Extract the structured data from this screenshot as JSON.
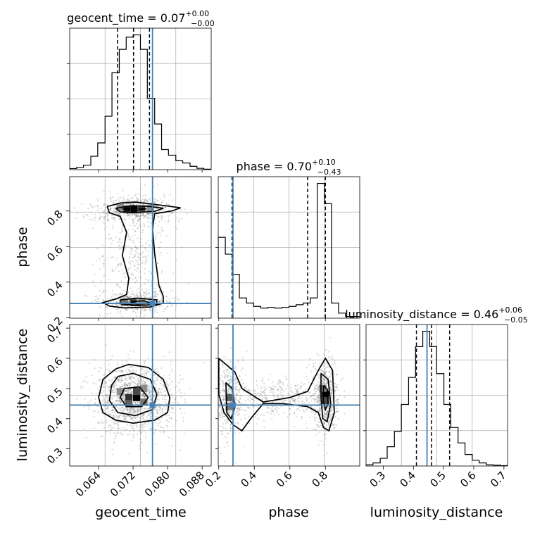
{
  "chart_data": {
    "type": "corner",
    "parameters": [
      "geocent_time",
      "phase",
      "luminosity_distance"
    ],
    "axis_labels": {
      "geocent_time": "geocent_time",
      "phase": "phase",
      "luminosity_distance": "luminosity_distance"
    },
    "ranges": {
      "geocent_time": [
        0.0573,
        0.0901
      ],
      "phase": [
        0.197,
        0.993
      ],
      "luminosity_distance": [
        0.243,
        0.712
      ]
    },
    "ticks": {
      "geocent_time": [
        "0.064",
        "0.072",
        "0.080",
        "0.088"
      ],
      "phase": [
        "0.2",
        "0.4",
        "0.6",
        "0.8"
      ],
      "luminosity_distance": [
        "0.3",
        "0.4",
        "0.5",
        "0.6",
        "0.7"
      ]
    },
    "phase_row_ticks": [
      "0.2",
      "0.4",
      "0.6",
      "0.8"
    ],
    "ld_row_ticks": [
      "0.3",
      "0.4",
      "0.5",
      "0.6",
      "0.7"
    ],
    "injection_values": {
      "geocent_time": 0.0765,
      "phase": 0.28,
      "luminosity_distance": 0.445
    },
    "summaries": [
      {
        "name": "geocent_time",
        "median": "0.07",
        "plus": "+0.00",
        "minus": "−0.00",
        "quantiles": [
          0.0684,
          0.0721,
          0.0758
        ]
      },
      {
        "name": "phase",
        "median": "0.70",
        "plus": "+0.10",
        "minus": "−0.43",
        "quantiles": [
          0.275,
          0.7,
          0.8
        ]
      },
      {
        "name": "luminosity_distance",
        "median": "0.46",
        "plus": "+0.06",
        "minus": "−0.05",
        "quantiles": [
          0.41,
          0.46,
          0.52
        ]
      }
    ],
    "histograms": {
      "geocent_time": {
        "bins": [
          0.0573,
          0.0589,
          0.0605,
          0.0622,
          0.0638,
          0.0655,
          0.0671,
          0.0688,
          0.0704,
          0.072,
          0.0737,
          0.0753,
          0.077,
          0.0786,
          0.0802,
          0.0819,
          0.0835,
          0.0852,
          0.0868,
          0.0884,
          0.0901
        ],
        "counts": [
          0.5,
          1.0,
          2.0,
          6.0,
          12.0,
          24.0,
          43.5,
          54.0,
          59.5,
          60.5,
          54.0,
          32.0,
          20.5,
          9.0,
          6.5,
          4.0,
          3.0,
          1.5,
          0.6,
          0.2
        ]
      },
      "phase": {
        "bins": [
          0.197,
          0.237,
          0.277,
          0.316,
          0.356,
          0.396,
          0.436,
          0.476,
          0.515,
          0.555,
          0.595,
          0.635,
          0.675,
          0.715,
          0.754,
          0.794,
          0.834,
          0.874,
          0.913,
          0.953,
          0.993
        ],
        "counts": [
          24,
          19,
          13,
          6,
          4.5,
          3.5,
          3.0,
          3.2,
          3.0,
          3.2,
          3.5,
          4.0,
          4.5,
          6.0,
          40,
          34,
          4.5,
          1.5,
          0.5,
          0.5
        ]
      },
      "luminosity_distance": {
        "bins": [
          0.243,
          0.266,
          0.29,
          0.313,
          0.337,
          0.36,
          0.384,
          0.407,
          0.431,
          0.454,
          0.477,
          0.501,
          0.524,
          0.548,
          0.571,
          0.595,
          0.618,
          0.642,
          0.665,
          0.689,
          0.712
        ],
        "counts": [
          0.3,
          0.8,
          2.0,
          5.0,
          9.0,
          16.0,
          23.0,
          31.0,
          35.0,
          31.0,
          24.0,
          16.0,
          10.0,
          6.0,
          3.0,
          1.5,
          0.8,
          0.3,
          0.2,
          0.1
        ]
      }
    },
    "contours": {
      "geocent_time_vs_phase": [
        [
          [
            0.066,
            0.825
          ],
          [
            0.069,
            0.845
          ],
          [
            0.0725,
            0.85
          ],
          [
            0.076,
            0.84
          ],
          [
            0.08,
            0.828
          ],
          [
            0.083,
            0.818
          ],
          [
            0.081,
            0.8
          ],
          [
            0.077,
            0.785
          ],
          [
            0.0765,
            0.7
          ],
          [
            0.077,
            0.56
          ],
          [
            0.078,
            0.38
          ],
          [
            0.079,
            0.32
          ],
          [
            0.079,
            0.282
          ],
          [
            0.076,
            0.26
          ],
          [
            0.07,
            0.255
          ],
          [
            0.0665,
            0.265
          ],
          [
            0.065,
            0.285
          ],
          [
            0.068,
            0.305
          ],
          [
            0.0705,
            0.33
          ],
          [
            0.071,
            0.42
          ],
          [
            0.0695,
            0.55
          ],
          [
            0.0705,
            0.68
          ],
          [
            0.069,
            0.77
          ],
          [
            0.0665,
            0.79
          ],
          [
            0.066,
            0.825
          ]
        ],
        [
          [
            0.068,
            0.815
          ],
          [
            0.0715,
            0.83
          ],
          [
            0.076,
            0.825
          ],
          [
            0.079,
            0.815
          ],
          [
            0.077,
            0.798
          ],
          [
            0.072,
            0.79
          ],
          [
            0.069,
            0.795
          ],
          [
            0.068,
            0.815
          ]
        ],
        [
          [
            0.0695,
            0.812
          ],
          [
            0.0725,
            0.818
          ],
          [
            0.075,
            0.812
          ],
          [
            0.0725,
            0.802
          ],
          [
            0.0695,
            0.812
          ]
        ],
        [
          [
            0.069,
            0.3
          ],
          [
            0.073,
            0.31
          ],
          [
            0.0775,
            0.3
          ],
          [
            0.0775,
            0.275
          ],
          [
            0.073,
            0.268
          ],
          [
            0.069,
            0.278
          ],
          [
            0.069,
            0.3
          ]
        ],
        [
          [
            0.0715,
            0.29
          ],
          [
            0.0745,
            0.295
          ],
          [
            0.076,
            0.282
          ],
          [
            0.073,
            0.276
          ],
          [
            0.0715,
            0.29
          ]
        ]
      ],
      "geocent_time_vs_luminosity_distance": [
        [
          [
            0.068,
            0.565
          ],
          [
            0.071,
            0.58
          ],
          [
            0.0755,
            0.57
          ],
          [
            0.079,
            0.53
          ],
          [
            0.0805,
            0.47
          ],
          [
            0.08,
            0.42
          ],
          [
            0.077,
            0.395
          ],
          [
            0.072,
            0.385
          ],
          [
            0.068,
            0.395
          ],
          [
            0.065,
            0.42
          ],
          [
            0.064,
            0.47
          ],
          [
            0.065,
            0.53
          ],
          [
            0.068,
            0.565
          ]
        ],
        [
          [
            0.0685,
            0.54
          ],
          [
            0.072,
            0.55
          ],
          [
            0.076,
            0.53
          ],
          [
            0.0775,
            0.48
          ],
          [
            0.0765,
            0.43
          ],
          [
            0.0725,
            0.41
          ],
          [
            0.0685,
            0.42
          ],
          [
            0.0665,
            0.46
          ],
          [
            0.067,
            0.51
          ],
          [
            0.0685,
            0.54
          ]
        ],
        [
          [
            0.07,
            0.5
          ],
          [
            0.0735,
            0.505
          ],
          [
            0.0755,
            0.47
          ],
          [
            0.074,
            0.44
          ],
          [
            0.0705,
            0.44
          ],
          [
            0.069,
            0.47
          ],
          [
            0.07,
            0.5
          ]
        ]
      ],
      "phase_vs_luminosity_distance": [
        [
          [
            0.2,
            0.6
          ],
          [
            0.29,
            0.555
          ],
          [
            0.33,
            0.5
          ],
          [
            0.45,
            0.455
          ],
          [
            0.6,
            0.47
          ],
          [
            0.7,
            0.49
          ],
          [
            0.76,
            0.56
          ],
          [
            0.8,
            0.6
          ],
          [
            0.84,
            0.56
          ],
          [
            0.85,
            0.42
          ],
          [
            0.82,
            0.36
          ],
          [
            0.79,
            0.37
          ],
          [
            0.76,
            0.42
          ],
          [
            0.7,
            0.44
          ],
          [
            0.56,
            0.45
          ],
          [
            0.45,
            0.45
          ],
          [
            0.38,
            0.4
          ],
          [
            0.33,
            0.36
          ],
          [
            0.28,
            0.38
          ],
          [
            0.23,
            0.42
          ],
          [
            0.2,
            0.48
          ],
          [
            0.2,
            0.6
          ]
        ],
        [
          [
            0.24,
            0.52
          ],
          [
            0.275,
            0.5
          ],
          [
            0.29,
            0.44
          ],
          [
            0.27,
            0.4
          ],
          [
            0.245,
            0.42
          ],
          [
            0.24,
            0.52
          ]
        ],
        [
          [
            0.775,
            0.55
          ],
          [
            0.815,
            0.53
          ],
          [
            0.83,
            0.45
          ],
          [
            0.81,
            0.39
          ],
          [
            0.785,
            0.4
          ],
          [
            0.775,
            0.47
          ],
          [
            0.775,
            0.55
          ]
        ],
        [
          [
            0.79,
            0.51
          ],
          [
            0.812,
            0.495
          ],
          [
            0.815,
            0.45
          ],
          [
            0.8,
            0.43
          ],
          [
            0.788,
            0.46
          ],
          [
            0.79,
            0.51
          ]
        ]
      ]
    },
    "density_cores": [
      {
        "panel": "geocent_time_vs_phase",
        "cells": [
          [
            0.0705,
            0.81,
            0.9
          ],
          [
            0.0722,
            0.81,
            1.0
          ],
          [
            0.074,
            0.812,
            0.7
          ],
          [
            0.076,
            0.815,
            0.4
          ],
          [
            0.069,
            0.82,
            0.4
          ],
          [
            0.07,
            0.285,
            0.5
          ],
          [
            0.072,
            0.285,
            0.7
          ],
          [
            0.074,
            0.29,
            0.4
          ]
        ]
      },
      {
        "panel": "geocent_time_vs_luminosity_distance",
        "cells": [
          [
            0.071,
            0.47,
            0.8
          ],
          [
            0.0728,
            0.47,
            1.0
          ],
          [
            0.0728,
            0.49,
            0.7
          ],
          [
            0.071,
            0.45,
            0.6
          ],
          [
            0.0745,
            0.455,
            0.5
          ],
          [
            0.069,
            0.49,
            0.4
          ],
          [
            0.0745,
            0.5,
            0.4
          ]
        ]
      },
      {
        "panel": "phase_vs_luminosity_distance",
        "cells": [
          [
            0.8,
            0.48,
            1.0
          ],
          [
            0.8,
            0.46,
            0.7
          ],
          [
            0.258,
            0.47,
            0.6
          ],
          [
            0.258,
            0.44,
            0.5
          ],
          [
            0.785,
            0.5,
            0.5
          ]
        ]
      }
    ]
  }
}
